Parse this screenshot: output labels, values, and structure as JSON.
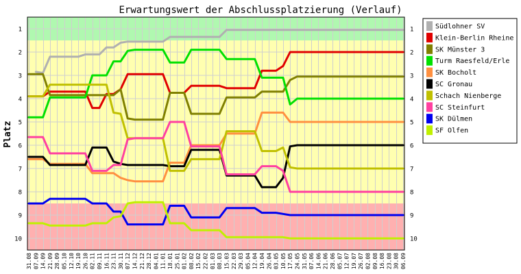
{
  "chart_data": {
    "type": "line",
    "title": "Erwartungswert der Abschlussplatzierung (Verlauf)",
    "xlabel": "",
    "ylabel": "Platz",
    "ylim": [
      0.5,
      10.5
    ],
    "y_inverted": true,
    "y_ticks": [
      "1",
      "2",
      "3",
      "4",
      "5",
      "6",
      "7",
      "8",
      "9",
      "10"
    ],
    "x": [
      "31.08",
      "07.09",
      "14.09",
      "21.09",
      "28.09",
      "05.10",
      "12.10",
      "19.10",
      "26.10",
      "02.11",
      "09.11",
      "16.11",
      "23.11",
      "30.11",
      "07.12",
      "14.12",
      "21.12",
      "28.12",
      "04.01",
      "11.01",
      "18.01",
      "25.01",
      "01.02",
      "08.02",
      "15.02",
      "22.02",
      "01.03",
      "08.03",
      "15.03",
      "22.03",
      "29.03",
      "05.04",
      "12.04",
      "19.04",
      "26.04",
      "03.05",
      "10.05",
      "17.05",
      "24.05",
      "31.05",
      "07.06",
      "14.06",
      "21.06",
      "28.06",
      "05.07",
      "12.07",
      "19.07",
      "26.07",
      "02.08",
      "09.08",
      "16.08",
      "23.08",
      "30.08",
      "06.09"
    ],
    "bands": [
      {
        "from": 0.5,
        "to": 1.5,
        "color": "#b0f8b0"
      },
      {
        "from": 1.5,
        "to": 8.5,
        "color": "#ffffb0"
      },
      {
        "from": 8.5,
        "to": 10.5,
        "color": "#ffb0b0"
      }
    ],
    "grid": true,
    "legend_position": "right",
    "series": [
      {
        "name": "Südlohner SV",
        "color": "#b0b0b0",
        "values": [
          null,
          2.85,
          2.9,
          2.2,
          2.2,
          2.2,
          2.2,
          2.2,
          2.1,
          2.1,
          2.1,
          1.8,
          1.8,
          1.6,
          1.55,
          1.55,
          1.55,
          1.55,
          1.55,
          1.55,
          1.35,
          1.35,
          1.35,
          1.35,
          1.35,
          1.35,
          1.35,
          1.35,
          1.05,
          1.05,
          1.05,
          1.05,
          1.05,
          1.05,
          1.05,
          1.05,
          1.05,
          1.05,
          1.05,
          1.05,
          1.05,
          1.05,
          1.05,
          1.05,
          1.05,
          1.05,
          1.05,
          1.05,
          1.05,
          1.05,
          1.05,
          1.05,
          1.05,
          1.05
        ]
      },
      {
        "name": "Klein-Berlin Rheine",
        "color": "#e00000",
        "values": [
          3.9,
          3.9,
          3.9,
          3.7,
          3.7,
          3.7,
          3.7,
          3.7,
          3.7,
          4.4,
          4.4,
          3.8,
          3.8,
          3.6,
          2.95,
          2.95,
          2.95,
          2.95,
          2.95,
          2.95,
          3.75,
          3.75,
          3.75,
          3.45,
          3.45,
          3.45,
          3.45,
          3.45,
          3.55,
          3.55,
          3.55,
          3.55,
          3.55,
          2.8,
          2.8,
          2.8,
          2.6,
          2.0,
          2.0,
          2.0,
          2.0,
          2.0,
          2.0,
          2.0,
          2.0,
          2.0,
          2.0,
          2.0,
          2.0,
          2.0,
          2.0,
          2.0,
          2.0,
          2.0
        ]
      },
      {
        "name": "SK Münster 3",
        "color": "#808000",
        "values": [
          2.95,
          2.95,
          2.95,
          3.85,
          3.85,
          3.85,
          3.85,
          3.85,
          3.85,
          3.85,
          3.85,
          3.85,
          3.85,
          3.6,
          4.85,
          4.9,
          4.9,
          4.9,
          4.9,
          4.9,
          3.75,
          3.75,
          3.75,
          4.65,
          4.65,
          4.65,
          4.65,
          4.65,
          3.95,
          3.95,
          3.95,
          3.95,
          3.95,
          3.7,
          3.7,
          3.7,
          3.7,
          3.2,
          3.05,
          3.05,
          3.05,
          3.05,
          3.05,
          3.05,
          3.05,
          3.05,
          3.05,
          3.05,
          3.05,
          3.05,
          3.05,
          3.05,
          3.05,
          3.05
        ]
      },
      {
        "name": "Turm Raesfeld/Erle",
        "color": "#00e000",
        "values": [
          4.8,
          4.8,
          4.8,
          3.95,
          3.95,
          3.95,
          3.95,
          3.95,
          3.95,
          3.0,
          3.0,
          3.0,
          2.4,
          2.4,
          1.95,
          1.9,
          1.9,
          1.9,
          1.9,
          1.9,
          2.45,
          2.45,
          2.45,
          1.9,
          1.9,
          1.9,
          1.9,
          1.9,
          2.3,
          2.3,
          2.3,
          2.3,
          2.3,
          3.1,
          3.1,
          3.1,
          3.1,
          4.25,
          4.0,
          4.0,
          4.0,
          4.0,
          4.0,
          4.0,
          4.0,
          4.0,
          4.0,
          4.0,
          4.0,
          4.0,
          4.0,
          4.0,
          4.0,
          4.0
        ]
      },
      {
        "name": "SK Bocholt",
        "color": "#ff9040",
        "values": [
          6.6,
          6.6,
          6.6,
          6.8,
          6.8,
          6.8,
          6.8,
          6.8,
          6.8,
          7.2,
          7.2,
          7.2,
          7.2,
          7.4,
          7.5,
          7.55,
          7.55,
          7.55,
          7.55,
          7.55,
          6.75,
          6.75,
          6.75,
          6.0,
          6.0,
          6.0,
          6.0,
          6.0,
          5.5,
          5.5,
          5.5,
          5.5,
          5.5,
          4.6,
          4.6,
          4.6,
          4.6,
          5.0,
          5.0,
          5.0,
          5.0,
          5.0,
          5.0,
          5.0,
          5.0,
          5.0,
          5.0,
          5.0,
          5.0,
          5.0,
          5.0,
          5.0,
          5.0,
          5.0
        ]
      },
      {
        "name": "SC Gronau",
        "color": "#000000",
        "values": [
          6.5,
          6.5,
          6.5,
          6.85,
          6.85,
          6.85,
          6.85,
          6.85,
          6.85,
          6.1,
          6.1,
          6.1,
          6.7,
          6.8,
          6.85,
          6.85,
          6.85,
          6.85,
          6.85,
          6.85,
          6.9,
          6.9,
          6.9,
          6.2,
          6.2,
          6.2,
          6.2,
          6.2,
          7.3,
          7.3,
          7.3,
          7.3,
          7.3,
          7.8,
          7.8,
          7.8,
          7.4,
          6.05,
          6.0,
          6.0,
          6.0,
          6.0,
          6.0,
          6.0,
          6.0,
          6.0,
          6.0,
          6.0,
          6.0,
          6.0,
          6.0,
          6.0,
          6.0,
          6.0
        ]
      },
      {
        "name": "Schach Nienberge",
        "color": "#c0c000",
        "values": [
          3.9,
          3.9,
          3.9,
          3.4,
          3.4,
          3.4,
          3.4,
          3.4,
          3.4,
          3.4,
          3.4,
          3.4,
          4.6,
          4.65,
          5.7,
          5.7,
          5.7,
          5.7,
          5.7,
          5.7,
          7.1,
          7.1,
          7.1,
          6.6,
          6.6,
          6.6,
          6.6,
          6.6,
          5.4,
          5.4,
          5.4,
          5.4,
          5.4,
          6.25,
          6.25,
          6.25,
          6.1,
          6.95,
          7.0,
          7.0,
          7.0,
          7.0,
          7.0,
          7.0,
          7.0,
          7.0,
          7.0,
          7.0,
          7.0,
          7.0,
          7.0,
          7.0,
          7.0,
          7.0
        ]
      },
      {
        "name": "SC Steinfurt",
        "color": "#ff40a0",
        "values": [
          5.65,
          5.65,
          5.65,
          6.35,
          6.35,
          6.35,
          6.35,
          6.35,
          6.35,
          7.1,
          7.1,
          7.1,
          6.85,
          6.85,
          5.75,
          5.7,
          5.7,
          5.7,
          5.7,
          5.7,
          5.0,
          5.0,
          5.0,
          6.05,
          6.05,
          6.05,
          6.05,
          6.05,
          7.25,
          7.25,
          7.25,
          7.25,
          7.25,
          6.9,
          6.9,
          6.9,
          7.1,
          8.0,
          8.0,
          8.0,
          8.0,
          8.0,
          8.0,
          8.0,
          8.0,
          8.0,
          8.0,
          8.0,
          8.0,
          8.0,
          8.0,
          8.0,
          8.0,
          8.0
        ]
      },
      {
        "name": "SK Dülmen",
        "color": "#0000f0",
        "values": [
          8.5,
          8.5,
          8.5,
          8.3,
          8.3,
          8.3,
          8.3,
          8.3,
          8.3,
          8.5,
          8.5,
          8.5,
          8.85,
          8.85,
          9.4,
          9.4,
          9.4,
          9.4,
          9.4,
          9.4,
          8.6,
          8.6,
          8.6,
          9.1,
          9.1,
          9.1,
          9.1,
          9.1,
          8.7,
          8.7,
          8.7,
          8.7,
          8.7,
          8.9,
          8.9,
          8.9,
          8.95,
          9.0,
          9.0,
          9.0,
          9.0,
          9.0,
          9.0,
          9.0,
          9.0,
          9.0,
          9.0,
          9.0,
          9.0,
          9.0,
          9.0,
          9.0,
          9.0,
          9.0
        ]
      },
      {
        "name": "SF Olfen",
        "color": "#c0f000",
        "values": [
          9.35,
          9.35,
          9.35,
          9.45,
          9.45,
          9.45,
          9.45,
          9.45,
          9.45,
          9.35,
          9.35,
          9.35,
          9.1,
          9.05,
          8.5,
          8.45,
          8.45,
          8.45,
          8.45,
          8.45,
          9.35,
          9.35,
          9.35,
          9.65,
          9.65,
          9.65,
          9.65,
          9.65,
          9.95,
          9.95,
          9.95,
          9.95,
          9.95,
          9.95,
          9.95,
          9.95,
          9.95,
          10.0,
          10.0,
          10.0,
          10.0,
          10.0,
          10.0,
          10.0,
          10.0,
          10.0,
          10.0,
          10.0,
          10.0,
          10.0,
          10.0,
          10.0,
          10.0,
          10.0
        ]
      }
    ]
  }
}
